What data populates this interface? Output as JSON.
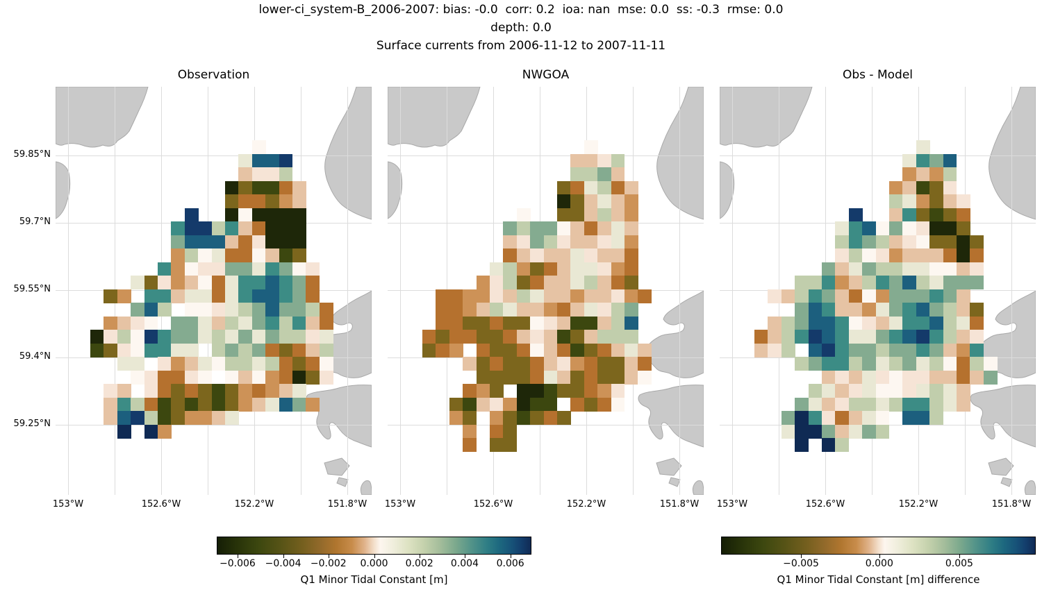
{
  "header": {
    "line1": "lower-ci_system-B_2006-2007: bias: -0.0  corr: 0.2  ioa: nan  mse: 0.0  ss: -0.3  rmse: 0.0",
    "line2": "depth: 0.0",
    "line3": "Surface currents from 2006-11-12 to 2007-11-11"
  },
  "colormap": {
    "stops": [
      {
        "p": 0.0,
        "c": "#151e06"
      },
      {
        "p": 0.06,
        "c": "#273209"
      },
      {
        "p": 0.13,
        "c": "#3c470f"
      },
      {
        "p": 0.2,
        "c": "#565316"
      },
      {
        "p": 0.27,
        "c": "#745f1e"
      },
      {
        "p": 0.33,
        "c": "#936a2b"
      },
      {
        "p": 0.38,
        "c": "#b0762f"
      },
      {
        "p": 0.43,
        "c": "#c88c4b"
      },
      {
        "p": 0.47,
        "c": "#e0b38b"
      },
      {
        "p": 0.5,
        "c": "#f3dfcb"
      },
      {
        "p": 0.52,
        "c": "#fdf6ef"
      },
      {
        "p": 0.56,
        "c": "#f0eedd"
      },
      {
        "p": 0.61,
        "c": "#dde2c2"
      },
      {
        "p": 0.66,
        "c": "#c4d1ac"
      },
      {
        "p": 0.71,
        "c": "#a4bd9b"
      },
      {
        "p": 0.76,
        "c": "#7ca98d"
      },
      {
        "p": 0.81,
        "c": "#539389"
      },
      {
        "p": 0.86,
        "c": "#2f7e85"
      },
      {
        "p": 0.9,
        "c": "#1d687f"
      },
      {
        "p": 0.94,
        "c": "#175278"
      },
      {
        "p": 0.97,
        "c": "#133e6c"
      },
      {
        "p": 1.0,
        "c": "#102a55"
      }
    ]
  },
  "colorbars": [
    {
      "label": "Q1 Minor Tidal Constant [m]",
      "ticks": [
        {
          "t": "−0.006",
          "f": 0.066
        },
        {
          "t": "−0.004",
          "f": 0.211
        },
        {
          "t": "−0.002",
          "f": 0.355
        },
        {
          "t": "0.000",
          "f": 0.5
        },
        {
          "t": "0.002",
          "f": 0.644
        },
        {
          "t": "0.004",
          "f": 0.788
        },
        {
          "t": "0.006",
          "f": 0.933
        }
      ]
    },
    {
      "label": "Q1 Minor Tidal Constant [m] difference",
      "ticks": [
        {
          "t": "−0.005",
          "f": 0.254
        },
        {
          "t": "0.000",
          "f": 0.503
        },
        {
          "t": "0.005",
          "f": 0.757
        }
      ]
    }
  ],
  "chart_data": {
    "type": "heatmap",
    "title": "Surface currents from 2006-11-12 to 2007-11-11",
    "subtitle_stats": {
      "bias": -0.0,
      "corr": 0.2,
      "ioa": "nan",
      "mse": 0.0,
      "ss": -0.3,
      "rmse": 0.0,
      "depth": 0.0
    },
    "lat_ticks": [
      "59.85°N",
      "59.7°N",
      "59.55°N",
      "59.4°N",
      "59.25°N"
    ],
    "lon_ticks": [
      "153°W",
      "152.6°W",
      "152.2°W",
      "151.8°W"
    ],
    "value_range_m": [
      -0.007,
      0.007
    ],
    "difference_range_m": [
      -0.01,
      0.011
    ],
    "legend": "Cell color codes map to Q1 minor tidal constant values [m] via palette; '.' = no data (water), land shown gray",
    "palette": {
      "K": "#1e2709",
      "G": "#3c470f",
      "g": "#7c661d",
      "B": "#b5712e",
      "b": "#cd9257",
      "t": "#e6c3a4",
      "p": "#f6e4d6",
      "w": "#fdf7f1",
      "c": "#e9e8d4",
      "s": "#c1ceac",
      "S": "#84ab90",
      "T": "#3c8c85",
      "D": "#1c5f7e",
      "N": "#143a6a",
      "n": "#0f2a54"
    },
    "panels": [
      {
        "title": "Observation",
        "grid": [
          "............w.....",
          "...........cDDN...",
          "...........tpps...",
          "..........KgGGBt..",
          "..........gBBgbt..",
          ".......N..KwKKKK..",
          "......TNNsTtBKKK..",
          "......SDDDtBpKKK..",
          "......bswcBBwtGg..",
          ".....TbwppSScTSwp.",
          "...cgpbtwBcTTDTSB.",
          ".gb.TTtccBcTDDTSB.",
          "...SDs.wwpcsSDSSsB",
          ".btpw.SSctscSTsTtB",
          "KpswNTSScscScSsspc",
          "GgpwTTcc.sSsSBgBts",
          "..cc.pbtcwsscsBgBw",
          "...wpBBpw.wtwbBKgp",
          ".pt.pBgBgGgbBbtc..",
          ".tTsBGgGgGgbtcDSb.",
          ".tDNsGgbbtc.......",
          "..n.nb............"
        ]
      },
      {
        "title": "NWGOA",
        "grid": [
          "............w.....",
          "...........ttps...",
          "...........ssSt...",
          "..........gBcsBt..",
          "..........Kgtctb..",
          ".......w..ggtstb..",
          "......SsSSwtBtct..",
          "......tpSspttpcb..",
          "......BtpttcpttB..",
          ".....csbgBtccpbB..",
          "....bpsgBttcstBg..",
          ".BBbbptscttbttpbB.",
          ".BBbtscttbBtcpsS..",
          ".BBggBggwptGGtsD..",
          "BgBBggBtptGgtsss..",
          "gBb.BggBwtBGgBtct.",
          "...tgBggBtpbBggtB.",
          "....ggggBctgBggtw.",
          "...Bbg.KKGggBbp...",
          "..gGtpbKGG.BgBw...",
          "..bg.bgGgBg.......",
          "...b.Bg...........",
          "...B.gg..........."
        ]
      },
      {
        "title": "Obs - Model",
        "grid": [
          "............c.....",
          "...........cTSD...",
          "...........btbs...",
          "..........btGgp...",
          "..........scbgtp..",
          ".......N..tTgGgB..",
          "......cTDwSwpKKg..",
          "......sTSstpwggKg.",
          "......pswpbtttBKB.",
          ".....StcSssccwwtp.",
          "...ssTbtsTSDscSSS.",
          ".ptsTStBwbSSSTSt..",
          "...SDTttbcSTDSstg.",
          ".tsSDDTwptcTTDscB.",
          "BtsTNDTccSTDNTstp.",
          "tps.DNTSSsSSTStbT.",
          "...sSTTsScsScswBsw",
          ".....tptcpwppttBtS",
          "....sctpcwwpcsct..",
          "...SctpsscsTTsct..",
          "..SnTpBtcw.DDs....",
          "..cnnStcSs........",
          "...n.ns..........."
        ]
      }
    ]
  }
}
